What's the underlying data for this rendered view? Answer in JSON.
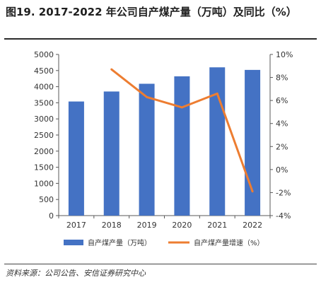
{
  "title": "图19. 2017-2022 年公司自产煤产量（万吨）及同比（%）",
  "source": "资料来源：公司公告、安信证券研究中心",
  "chart_data": {
    "type": "bar+line",
    "categories": [
      "2017",
      "2018",
      "2019",
      "2020",
      "2021",
      "2022"
    ],
    "series": [
      {
        "name": "自产煤产量（万吨）",
        "type": "bar",
        "axis": "left",
        "color": "#4472C4",
        "values": [
          3540,
          3850,
          4090,
          4320,
          4600,
          4520
        ]
      },
      {
        "name": "自产煤产量增速（%）",
        "type": "line",
        "axis": "right",
        "color": "#ED7D31",
        "values": [
          null,
          8.7,
          6.3,
          5.4,
          6.6,
          -1.9
        ]
      }
    ],
    "y_left": {
      "min": 0,
      "max": 5000,
      "step": 500,
      "ticks": [
        "0",
        "500",
        "1000",
        "1500",
        "2000",
        "2500",
        "3000",
        "3500",
        "4000",
        "4500",
        "5000"
      ]
    },
    "y_right": {
      "min": -4,
      "max": 10,
      "step": 2,
      "ticks": [
        "-4%",
        "-2%",
        "0%",
        "2%",
        "4%",
        "6%",
        "8%",
        "10%"
      ]
    },
    "legend_position": "bottom",
    "grid": false
  }
}
